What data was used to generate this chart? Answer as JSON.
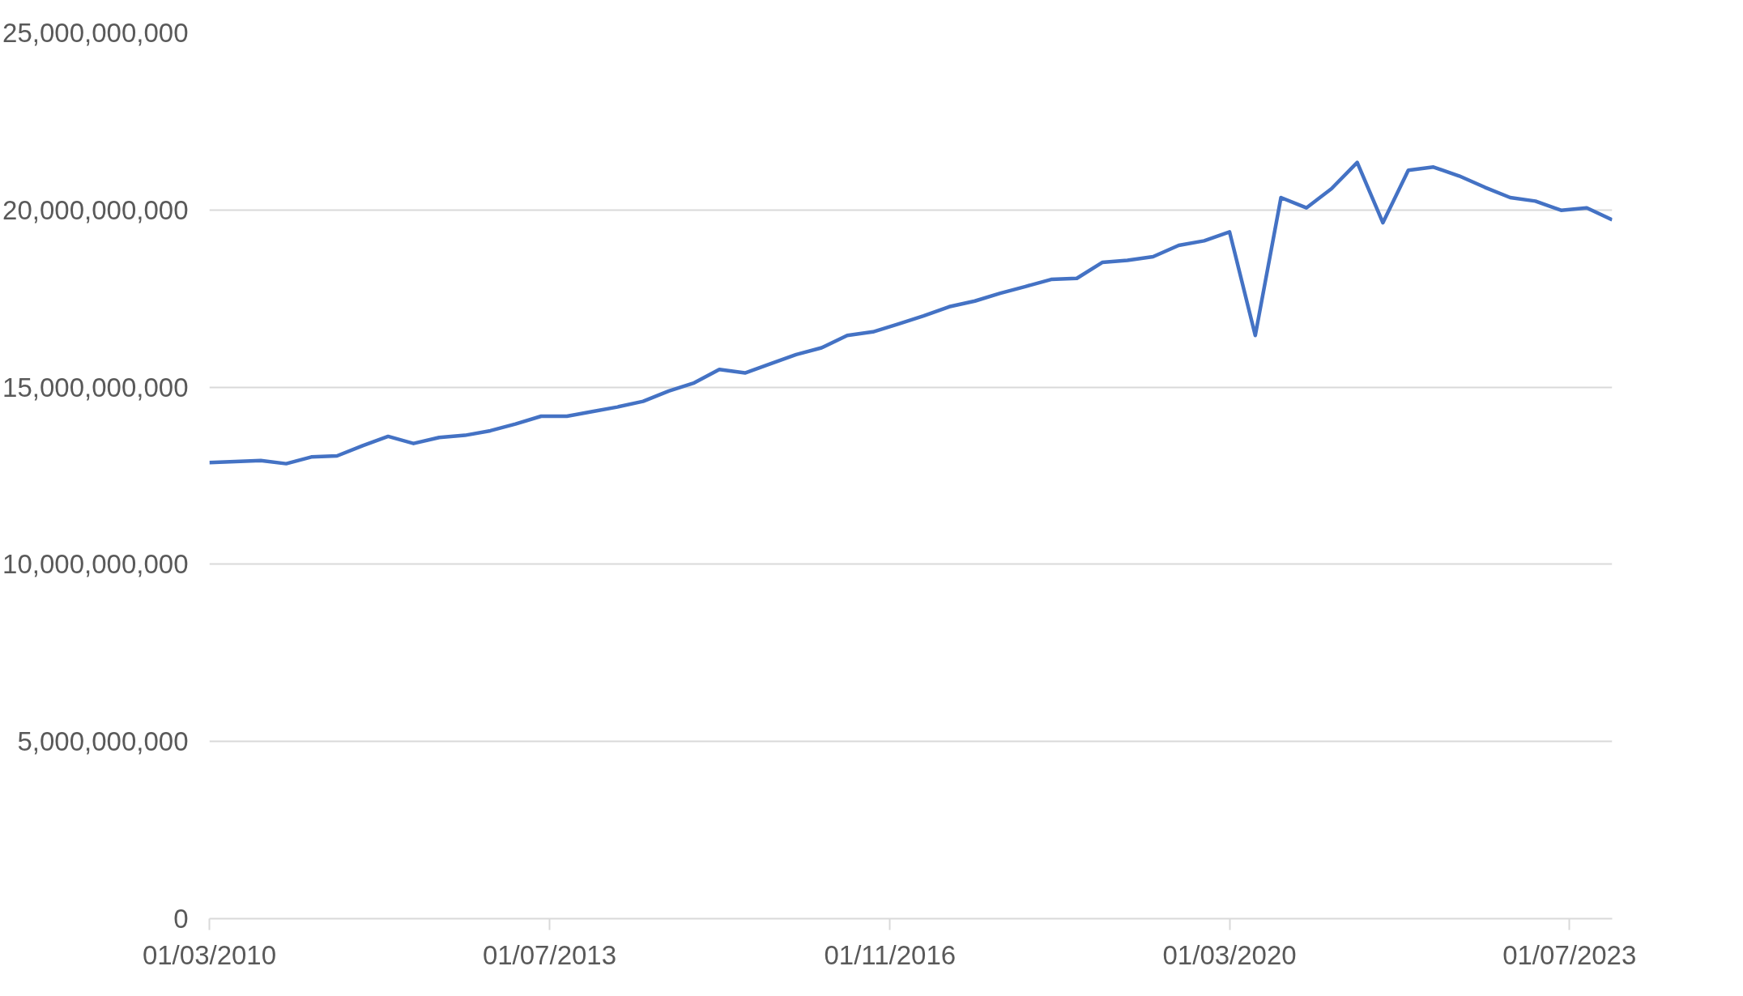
{
  "chart_data": {
    "type": "line",
    "x": [
      "2010-03-01",
      "2010-06-01",
      "2010-09-01",
      "2010-12-01",
      "2011-03-01",
      "2011-06-01",
      "2011-09-01",
      "2011-12-01",
      "2012-03-01",
      "2012-06-01",
      "2012-09-01",
      "2012-12-01",
      "2013-03-01",
      "2013-06-01",
      "2013-09-01",
      "2013-12-01",
      "2014-03-01",
      "2014-06-01",
      "2014-09-01",
      "2014-12-01",
      "2015-03-01",
      "2015-06-01",
      "2015-09-01",
      "2015-12-01",
      "2016-03-01",
      "2016-06-01",
      "2016-09-01",
      "2016-12-01",
      "2017-03-01",
      "2017-06-01",
      "2017-09-01",
      "2017-12-01",
      "2018-03-01",
      "2018-06-01",
      "2018-09-01",
      "2018-12-01",
      "2019-03-01",
      "2019-06-01",
      "2019-09-01",
      "2019-12-01",
      "2020-03-01",
      "2020-06-01",
      "2020-09-01",
      "2020-12-01",
      "2021-03-01",
      "2021-06-01",
      "2021-09-01",
      "2021-12-01",
      "2022-03-01",
      "2022-06-01",
      "2022-09-01",
      "2022-12-01",
      "2023-03-01",
      "2023-06-01",
      "2023-09-01",
      "2023-12-01"
    ],
    "series": [
      {
        "color": "#4472c4",
        "values": [
          12870000000,
          12900000000,
          12930000000,
          12840000000,
          13030000000,
          13060000000,
          13350000000,
          13610000000,
          13410000000,
          13580000000,
          13640000000,
          13770000000,
          13960000000,
          14180000000,
          14180000000,
          14310000000,
          14440000000,
          14600000000,
          14890000000,
          15120000000,
          15500000000,
          15400000000,
          15660000000,
          15920000000,
          16110000000,
          16460000000,
          16560000000,
          16780000000,
          17010000000,
          17270000000,
          17430000000,
          17650000000,
          17840000000,
          18040000000,
          18070000000,
          18520000000,
          18580000000,
          18680000000,
          19000000000,
          19130000000,
          19380000000,
          16460000000,
          20350000000,
          20060000000,
          20600000000,
          21340000000,
          19640000000,
          21120000000,
          21210000000,
          20960000000,
          20640000000,
          20350000000,
          20250000000,
          19990000000,
          20060000000,
          19720000000
        ]
      }
    ],
    "xlim": [
      "2010-03-01",
      "2023-12-01"
    ],
    "xticks": [
      {
        "value": "2010-03-01",
        "label": "01/03/2010"
      },
      {
        "value": "2013-07-01",
        "label": "01/07/2013"
      },
      {
        "value": "2016-11-01",
        "label": "01/11/2016"
      },
      {
        "value": "2020-03-01",
        "label": "01/03/2020"
      },
      {
        "value": "2023-07-01",
        "label": "01/07/2023"
      }
    ],
    "ylim": [
      0,
      25000000000
    ],
    "yticks": [
      {
        "value": 0,
        "label": "0"
      },
      {
        "value": 5000000000,
        "label": "5,000,000,000"
      },
      {
        "value": 10000000000,
        "label": "10,000,000,000"
      },
      {
        "value": 15000000000,
        "label": "15,000,000,000"
      },
      {
        "value": 20000000000,
        "label": "20,000,000,000"
      },
      {
        "value": 25000000000,
        "label": "25,000,000,000"
      }
    ],
    "grid": "y",
    "line_style": "solid"
  }
}
